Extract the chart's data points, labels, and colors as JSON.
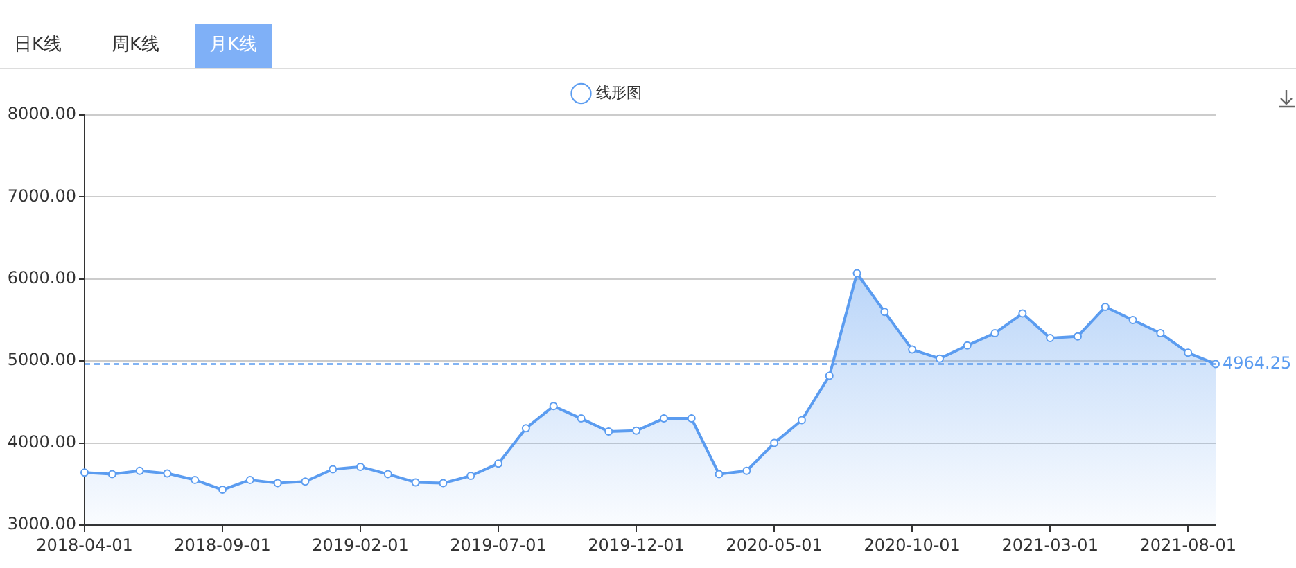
{
  "chart_data": {
    "type": "area",
    "categories": [
      "2018-04-01",
      null,
      null,
      null,
      null,
      "2018-09-01",
      null,
      null,
      null,
      null,
      "2019-02-01",
      null,
      null,
      null,
      null,
      "2019-07-01",
      null,
      null,
      null,
      null,
      "2019-12-01",
      null,
      null,
      null,
      null,
      "2020-05-01",
      null,
      null,
      null,
      null,
      "2020-10-01",
      null,
      null,
      null,
      null,
      "2021-03-01",
      null,
      null,
      null,
      null,
      "2021-08-01",
      null
    ],
    "series": [
      {
        "name": "线形图",
        "color": "#5b9cf0",
        "values": [
          3640,
          3620,
          3660,
          3630,
          3550,
          3430,
          3550,
          3510,
          3530,
          3680,
          3710,
          3620,
          3520,
          3510,
          3600,
          3750,
          4180,
          4450,
          4300,
          4140,
          4150,
          4300,
          4300,
          3620,
          3660,
          4000,
          4280,
          4820,
          6070,
          5600,
          5140,
          5030,
          5190,
          5340,
          5580,
          5280,
          5300,
          5660,
          5500,
          5340,
          5100,
          4964.25
        ]
      }
    ],
    "ylim": [
      3000,
      8000
    ],
    "yticks": [
      {
        "value": 3000,
        "label": "3000.00"
      },
      {
        "value": 4000,
        "label": "4000.00"
      },
      {
        "value": 5000,
        "label": "5000.00"
      },
      {
        "value": 6000,
        "label": "6000.00"
      },
      {
        "value": 7000,
        "label": "7000.00"
      },
      {
        "value": 8000,
        "label": "8000.00"
      }
    ],
    "grid": "y",
    "legend": "top",
    "marker": "circle",
    "ref_lines": [
      {
        "axis": "y",
        "value": 4964.25,
        "label": "4964.25",
        "color": "#5b9cf0",
        "line_style": "dashed"
      }
    ],
    "annotations": [
      "日K线",
      "周K线",
      "月K线"
    ]
  }
}
